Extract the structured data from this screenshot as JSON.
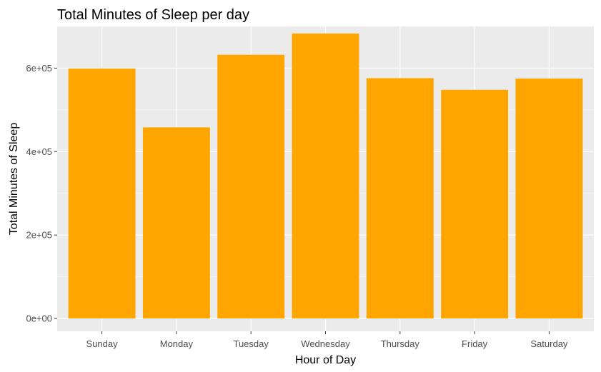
{
  "chart_data": {
    "type": "bar",
    "title": "Total Minutes of Sleep per day",
    "xlabel": "Hour of Day",
    "ylabel": "Total Minutes of Sleep",
    "categories": [
      "Sunday",
      "Monday",
      "Tuesday",
      "Wednesday",
      "Thursday",
      "Friday",
      "Saturday"
    ],
    "values": [
      599000,
      458000,
      632000,
      683000,
      576000,
      548000,
      575000
    ],
    "ylim": [
      0,
      700000
    ],
    "yticks": [
      0,
      200000,
      400000,
      600000
    ],
    "ytick_labels": [
      "0e+00",
      "2e+05",
      "4e+05",
      "6e+05"
    ],
    "grid": true,
    "legend": "none",
    "colors": {
      "bar": "#FFA500",
      "panel": "#EBEBEB",
      "grid_major": "#FFFFFF",
      "grid_minor": "#F7F7F7",
      "tick": "#333333"
    }
  }
}
